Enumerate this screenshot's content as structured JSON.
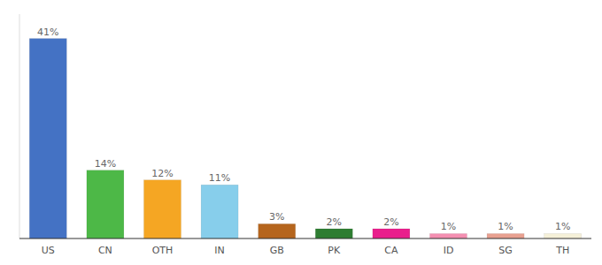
{
  "chart_data": {
    "type": "bar",
    "categories": [
      "US",
      "CN",
      "OTH",
      "IN",
      "GB",
      "PK",
      "CA",
      "ID",
      "SG",
      "TH"
    ],
    "values": [
      41,
      14,
      12,
      11,
      3,
      2,
      2,
      1,
      1,
      1
    ],
    "value_labels": [
      "41%",
      "14%",
      "12%",
      "11%",
      "3%",
      "2%",
      "2%",
      "1%",
      "1%",
      "1%"
    ],
    "colors": [
      "#4472c4",
      "#4db847",
      "#f5a623",
      "#87ceeb",
      "#b5651d",
      "#2e7d32",
      "#e91e8c",
      "#f48fb1",
      "#e8a090",
      "#f5f0d8"
    ],
    "ylim": [
      0,
      46
    ],
    "data_labels": true,
    "tick_labels": "x",
    "grid": false
  }
}
